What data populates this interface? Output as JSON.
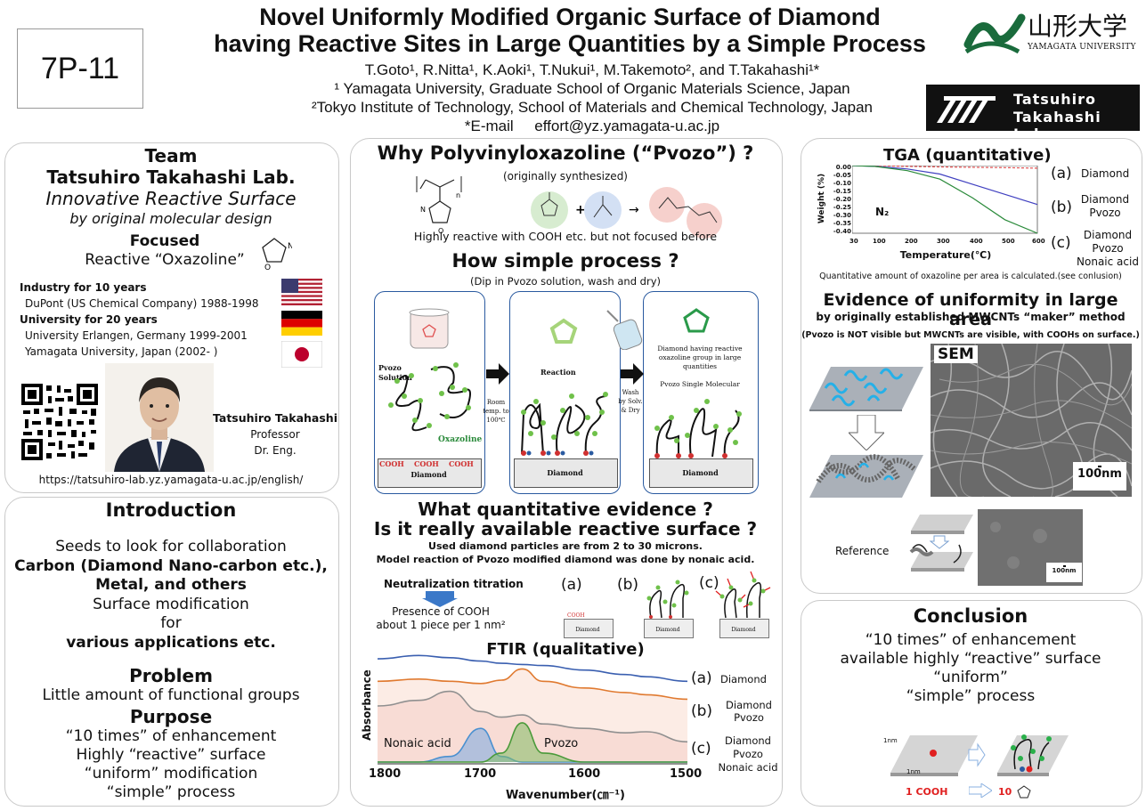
{
  "header": {
    "poster_id": "7P-11",
    "title_line1": "Novel Uniformly Modified Organic Surface of Diamond",
    "title_line2": "having Reactive Sites in Large Quantities by a Simple Process",
    "authors": "T.Goto¹, R.Nitta¹, K.Aoki¹, T.Nukui¹, M.Takemoto², and T.Takahashi¹*",
    "affil1": "¹ Yamagata University, Graduate School of Organic Materials Science, Japan",
    "affil2": "²Tokyo Institute of Technology, School of Materials and Chemical Technology, Japan",
    "email": "*E-mail     effort@yz.yamagata-u.ac.jp",
    "uni_logo_kanji": "山形大学",
    "uni_logo_en": "YAMAGATA UNIVERSITY",
    "lab_logo_line1": "Tatsuhiro",
    "lab_logo_line2": "Takahashi Lab."
  },
  "team": {
    "heading": "Team",
    "lab_name": "Tatsuhiro Takahashi Lab.",
    "tagline1": "Innovative Reactive Surface",
    "tagline2": "by original molecular design",
    "focused": "Focused",
    "focused_item": "Reactive “Oxazoline”",
    "industry_head": "Industry for 10 years",
    "industry_item": "DuPont (US Chemical Company) 1988-1998",
    "university_head": "University for 20 years",
    "university_item1": "University Erlangen, Germany 1999-2001",
    "university_item2": "Yamagata University, Japan (2002- )",
    "person_name": "Tatsuhiro Takahashi",
    "person_title": "Professor",
    "person_degree": "Dr. Eng.",
    "url": "https://tatsuhiro-lab.yz.yamagata-u.ac.jp/english/"
  },
  "intro": {
    "heading": "Introduction",
    "line1": "Seeds to look for collaboration",
    "line2": "Carbon (Diamond Nano-carbon etc.),",
    "line3": "Metal, and others",
    "line4": "Surface modification",
    "line5": "for",
    "line6": "various applications etc.",
    "problem_head": "Problem",
    "problem_text": "Little amount of functional groups",
    "purpose_head": "Purpose",
    "purpose1": "“10 times” of enhancement",
    "purpose2": "Highly “reactive” surface",
    "purpose3": "“uniform” modification",
    "purpose4": "“simple” process"
  },
  "center": {
    "why_head": "Why Polyvinyloxazoline (“Pvozo”) ?",
    "why_sub": "(originally synthesized)",
    "why_note": "Highly reactive with COOH etc. but not focused before",
    "how_head": "How simple process ?",
    "how_sub": "(Dip in Pvozo solution, wash and dry)",
    "step1_label": "Pvozo Solution",
    "step1_oxazoline": "Oxazoline",
    "step1_cooh": "COOH",
    "step_diamond": "Diamond",
    "arrow1_text": "Room temp. to 100℃",
    "step2_label": "Reaction",
    "arrow2_text": "Wash by Solv. & Dry",
    "step3_label1": "Diamond having reactive oxazoline group in large quantities",
    "step3_label2": "Pvozo Single Molecular",
    "quant_head1": "What quantitative evidence ?",
    "quant_head2": "Is it really available reactive surface ?",
    "quant_sub1": "Used diamond particles are from 2 to 30 microns.",
    "quant_sub2": "Model reaction of Pvozo modified diamond was done by nonaic acid.",
    "titration": "Neutralization titration",
    "presence1": "Presence of COOH",
    "presence2": "about 1 piece per 1 nm²",
    "label_a": "(a)",
    "label_b": "(b)",
    "label_c": "(c)",
    "small_diamond": "Diamond",
    "small_cooh": "COOH",
    "ftir_title": "FTIR (qualitative)",
    "ftir_ylabel": "Absorbance",
    "ftir_xlabel": "Wavenumber(㎝⁻¹)",
    "ftir_ann_nonaic": "Nonaic acid",
    "ftir_ann_pvozo": "Pvozo"
  },
  "ftir_legend": {
    "a": "(a)",
    "a_text": "Diamond",
    "b": "(b)",
    "b_text1": "Diamond",
    "b_text2": "Pvozo",
    "c": "(c)",
    "c_text1": "Diamond",
    "c_text2": "Pvozo",
    "c_text3": "Nonaic acid"
  },
  "tga": {
    "title": "TGA (quantitative)",
    "legend_a": "(a)",
    "legend_a_text": "Diamond",
    "legend_b": "(b)",
    "legend_b_text1": "Diamond",
    "legend_b_text2": "Pvozo",
    "legend_c": "(c)",
    "legend_c_text1": "Diamond",
    "legend_c_text2": "Pvozo",
    "legend_c_text3": "Nonaic acid",
    "note": "Quantitative amount of oxazoline per area is calculated.(see conlusion)"
  },
  "uniformity": {
    "head": "Evidence of uniformity in large area",
    "sub": "by originally established MWCNTs “maker” method",
    "note": "(Pvozo is NOT visible but MWCNTs are visible, with COOHs on surface.)",
    "sem": "SEM",
    "scale1": "100nm",
    "reference": "Reference",
    "scale2": "100nm"
  },
  "conclusion": {
    "head": "Conclusion",
    "line1": "“10 times” of enhancement",
    "line2": "available highly “reactive” surface",
    "line3": "“uniform”",
    "line4": "“simple” process",
    "dim1": "1nm",
    "dim2": "1nm",
    "cooh": "1 COOH",
    "ten": "10"
  },
  "chart_data": [
    {
      "type": "line",
      "title": "TGA (quantitative)",
      "xlabel": "Temperature(℃)",
      "ylabel": "Weight (%)",
      "xlim": [
        30,
        600
      ],
      "ylim": [
        -0.4,
        0.0
      ],
      "x_ticks": [
        "30",
        "100",
        "200",
        "300",
        "400",
        "500",
        "600"
      ],
      "y_ticks": [
        "0.00",
        "-0.05",
        "-0.10",
        "-0.15",
        "-0.20",
        "-0.25",
        "-0.30",
        "-0.35",
        "-0.40"
      ],
      "annotation": "N₂",
      "x": [
        30,
        100,
        200,
        300,
        400,
        500,
        600
      ],
      "series": [
        {
          "name": "(a)",
          "color": "#e05050",
          "values": [
            0.0,
            0.0,
            -0.005,
            -0.008,
            -0.01,
            -0.012,
            -0.015
          ]
        },
        {
          "name": "(b)",
          "color": "#4040c0",
          "values": [
            0.0,
            -0.005,
            -0.02,
            -0.05,
            -0.11,
            -0.17,
            -0.23
          ]
        },
        {
          "name": "(c)",
          "color": "#2a8a3a",
          "values": [
            0.0,
            -0.005,
            -0.03,
            -0.08,
            -0.19,
            -0.32,
            -0.4
          ]
        }
      ]
    },
    {
      "type": "line",
      "title": "FTIR (qualitative)",
      "xlabel": "Wavenumber(㎝⁻¹)",
      "ylabel": "Absorbance",
      "xlim": [
        1800,
        1500
      ],
      "x_ticks": [
        "1800",
        "1700",
        "1600",
        "1500"
      ],
      "x": [
        1800,
        1760,
        1730,
        1700,
        1680,
        1660,
        1640,
        1600,
        1560,
        1540,
        1500
      ],
      "series": [
        {
          "name": "(a)",
          "color": "#3a5fb0",
          "values": [
            0.92,
            0.95,
            0.93,
            0.9,
            0.88,
            0.87,
            0.86,
            0.82,
            0.78,
            0.76,
            0.72
          ]
        },
        {
          "name": "(b)",
          "color": "#e07a30",
          "values": [
            0.72,
            0.74,
            0.72,
            0.7,
            0.73,
            0.83,
            0.72,
            0.66,
            0.62,
            0.6,
            0.56
          ]
        },
        {
          "name": "(c)",
          "color": "#909090",
          "values": [
            0.5,
            0.55,
            0.63,
            0.45,
            0.4,
            0.42,
            0.34,
            0.3,
            0.26,
            0.27,
            0.18
          ]
        },
        {
          "name": "Nonaic acid",
          "color": "#4a90d0",
          "values": [
            0.0,
            0.0,
            0.05,
            0.3,
            0.05,
            0.0,
            0.0,
            0.0,
            0.0,
            0.0,
            0.0
          ]
        },
        {
          "name": "Pvozo",
          "color": "#4a9a3a",
          "values": [
            0.0,
            0.0,
            0.0,
            0.0,
            0.08,
            0.35,
            0.08,
            0.0,
            0.0,
            0.0,
            0.0
          ]
        }
      ]
    }
  ]
}
